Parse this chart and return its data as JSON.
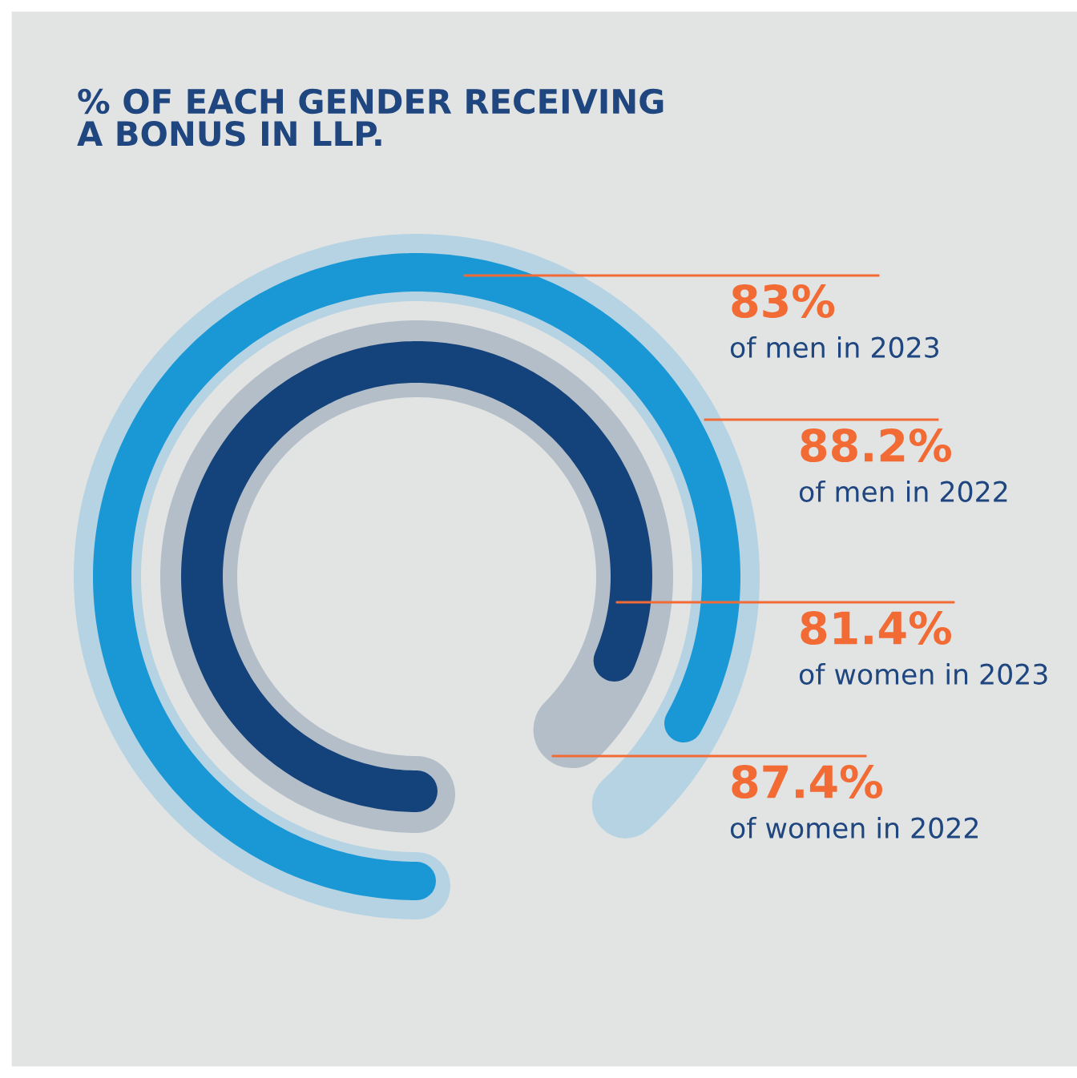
{
  "chart_data": {
    "type": "other",
    "title": "% OF EACH GENDER RECEIVING A BONUS IN LLP.",
    "categories": [
      "of men in 2023",
      "of men in 2022",
      "of women in 2023",
      "of women in 2022"
    ],
    "values": [
      83,
      88.2,
      81.4,
      87.4
    ],
    "colors": [
      "#1a98d5",
      "#b5d3e3",
      "#14427a",
      "#b4bec8"
    ],
    "value_labels": [
      "83%",
      "88.2%",
      "81.4%",
      "87.4%"
    ]
  }
}
